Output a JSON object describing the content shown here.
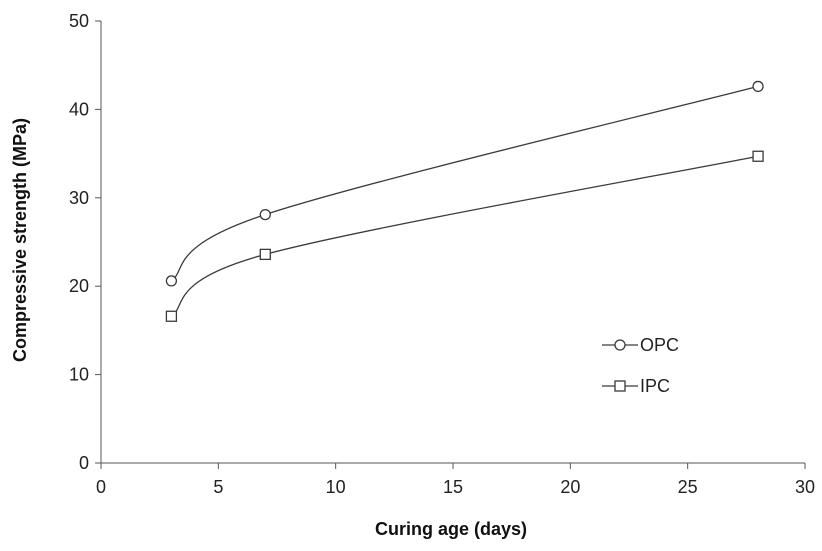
{
  "chart_data": {
    "type": "line",
    "title": "",
    "xlabel": "Curing age (days)",
    "ylabel": "Compressive strength (MPa)",
    "xlim": [
      0,
      30
    ],
    "ylim": [
      0,
      50
    ],
    "xticks": [
      0,
      5,
      10,
      15,
      20,
      25,
      30
    ],
    "yticks": [
      0,
      10,
      20,
      30,
      40,
      50
    ],
    "grid": false,
    "legend_position": "right",
    "series": [
      {
        "name": "OPC",
        "marker": "circle",
        "color": "#3a3a3a",
        "x": [
          3,
          7,
          28
        ],
        "y": [
          20.6,
          28.1,
          42.6
        ]
      },
      {
        "name": "IPC",
        "marker": "square",
        "color": "#3a3a3a",
        "x": [
          3,
          7,
          28
        ],
        "y": [
          16.6,
          23.6,
          34.7
        ]
      }
    ]
  }
}
